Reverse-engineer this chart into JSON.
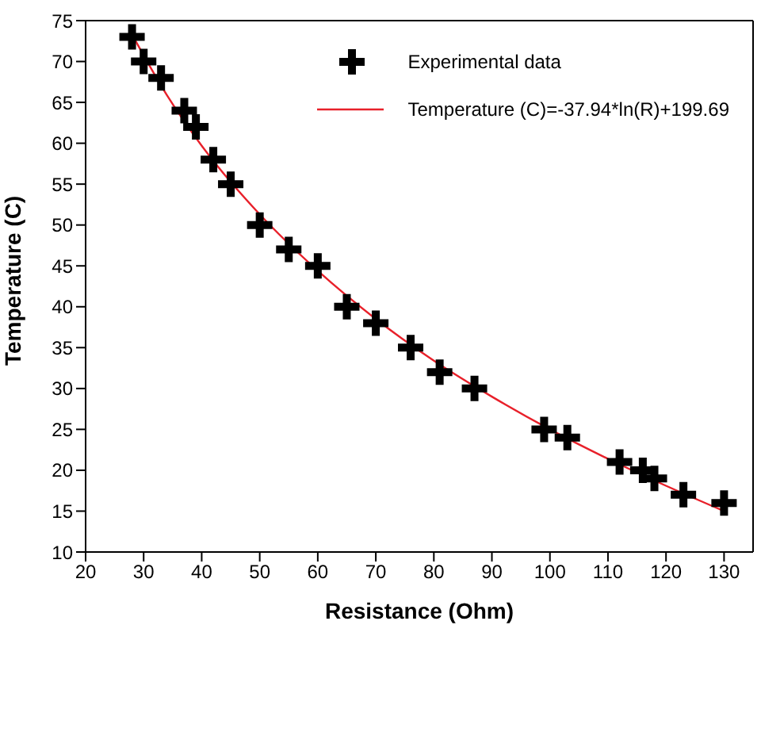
{
  "chart_data": {
    "type": "scatter",
    "xlabel": "Resistance (Ohm)",
    "ylabel": "Temperature (C)",
    "xlim": [
      20,
      135
    ],
    "ylim": [
      10,
      75
    ],
    "xticks": [
      20,
      30,
      40,
      50,
      60,
      70,
      80,
      90,
      100,
      110,
      120,
      130
    ],
    "yticks": [
      10,
      15,
      20,
      25,
      30,
      35,
      40,
      45,
      50,
      55,
      60,
      65,
      70,
      75
    ],
    "legend": "top right",
    "x": [
      28,
      30,
      33,
      37,
      39,
      42,
      45,
      50,
      55,
      60,
      65,
      70,
      76,
      81,
      87,
      99,
      103,
      112,
      116,
      118,
      123,
      130
    ],
    "series": [
      {
        "name": "Experimental data",
        "marker": "cross",
        "color": "#000000",
        "values": [
          73,
          70,
          68,
          64,
          62,
          58,
          55,
          50,
          47,
          45,
          40,
          38,
          35,
          32,
          30,
          25,
          24,
          21,
          20,
          19,
          17,
          16
        ]
      },
      {
        "name": "Temperature (C)=-37.94*ln(R)+199.69",
        "type": "line",
        "marker": "none",
        "line_style": "solid",
        "color": "#e8202a",
        "x": [
          28,
          34,
          40,
          50,
          60,
          70,
          80,
          90,
          100,
          110,
          120,
          130
        ],
        "values": [
          73.3,
          65.9,
          59.7,
          51.3,
          44.4,
          38.5,
          33.4,
          29,
          25,
          21.4,
          18.1,
          15
        ]
      }
    ]
  }
}
